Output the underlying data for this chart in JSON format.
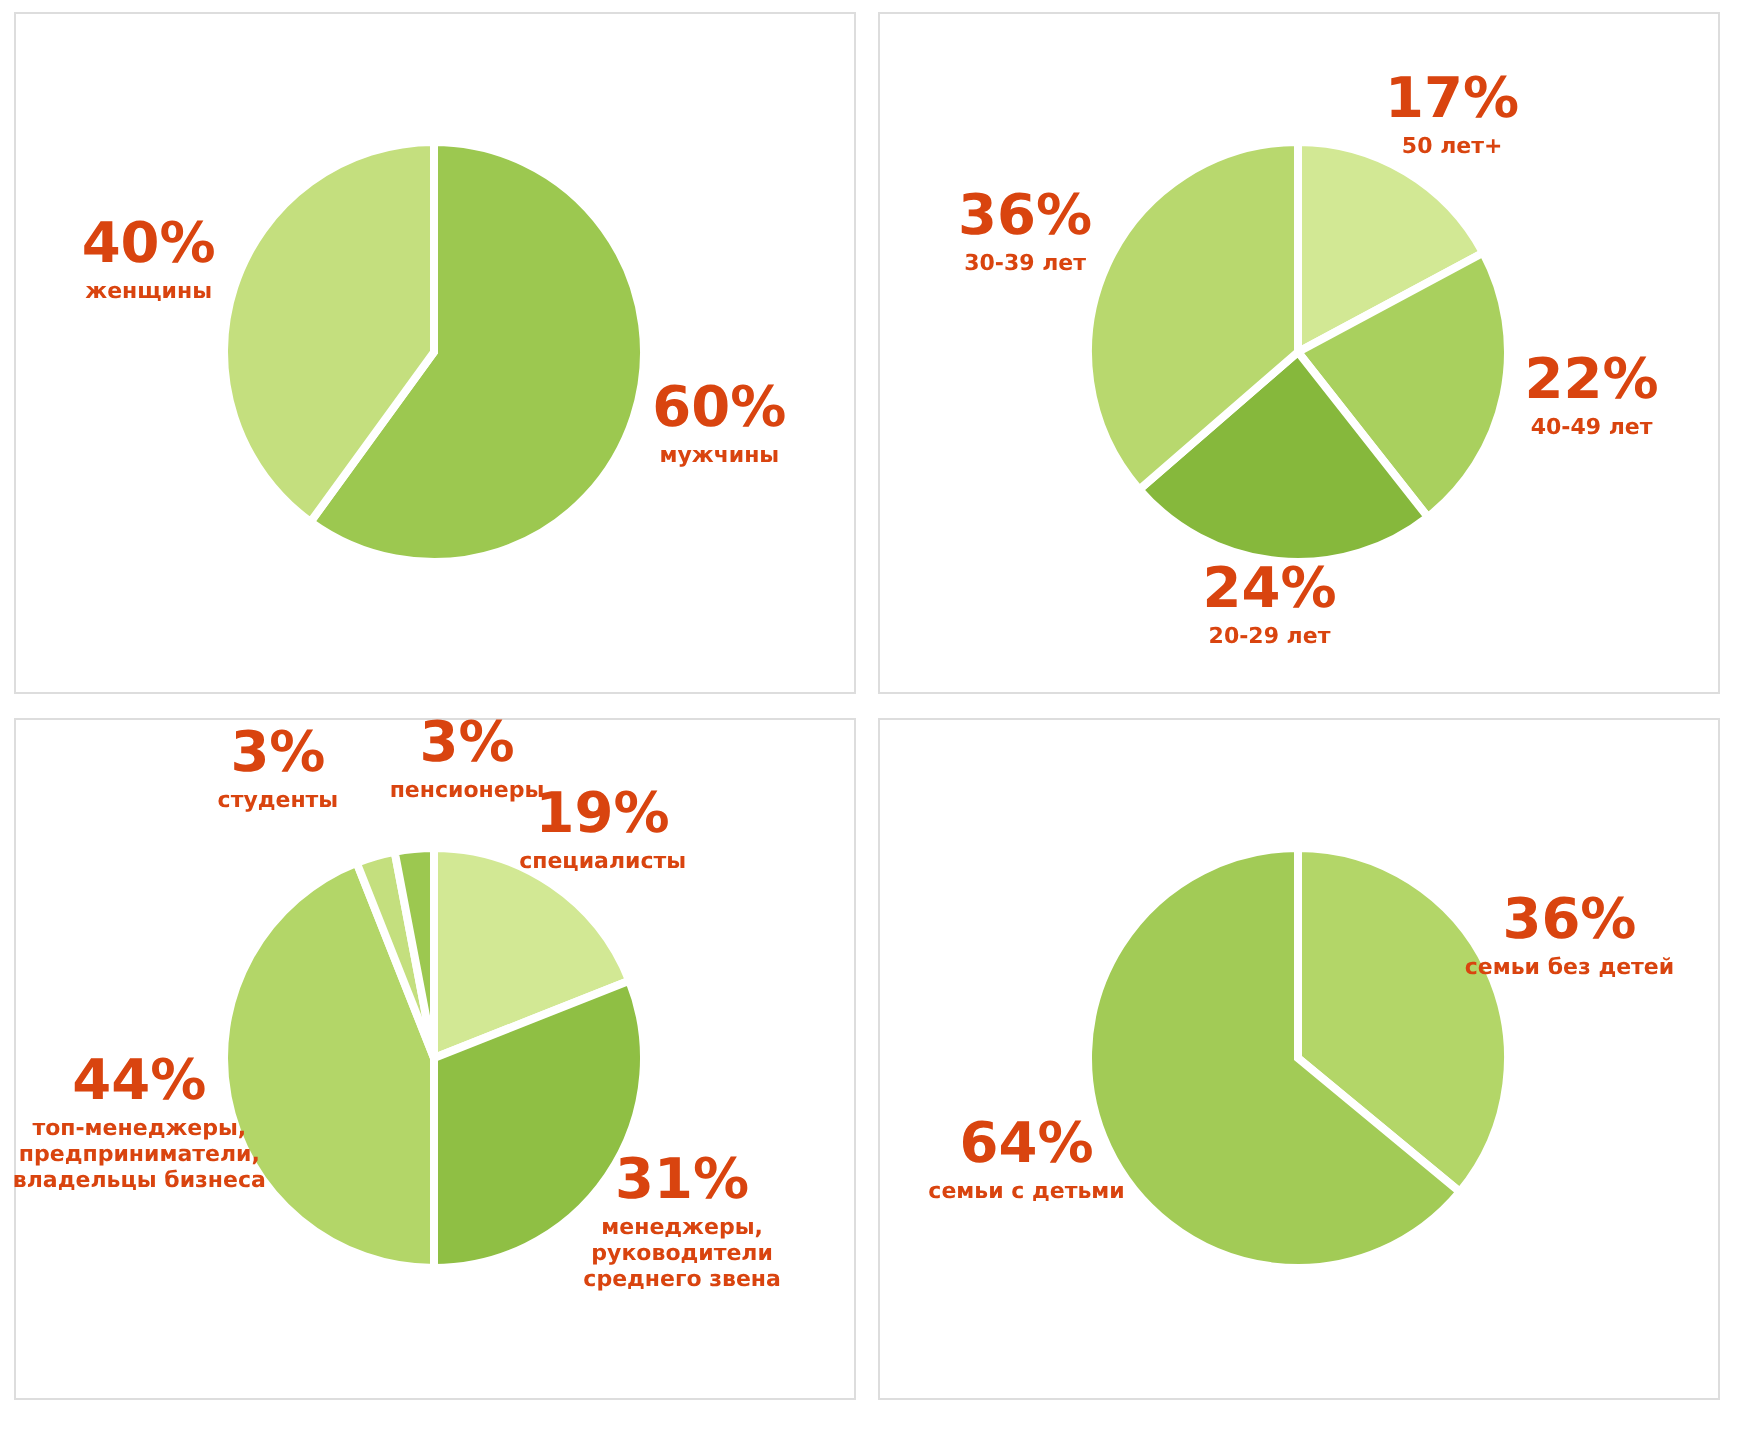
{
  "chart_data": [
    {
      "type": "pie",
      "categories": [
        "мужчины",
        "женщины"
      ],
      "values": [
        60,
        40
      ],
      "value_labels": [
        "60%",
        "40%"
      ],
      "colors": [
        "#9cc850",
        "#c4df7e"
      ],
      "legend": false
    },
    {
      "type": "pie",
      "categories": [
        "50 лет+",
        "40-49 лет",
        "20-29 лет",
        "30-39 лет"
      ],
      "values": [
        17,
        22,
        24,
        36
      ],
      "value_labels": [
        "17%",
        "22%",
        "24%",
        "36%"
      ],
      "colors": [
        "#d2e894",
        "#a9d05e",
        "#86b83c",
        "#b8d86e"
      ],
      "legend": false
    },
    {
      "type": "pie",
      "categories": [
        "специалисты",
        "менеджеры,\nруководители\nсреднего звена",
        "топ-менеджеры,\nпредприниматели,\nвладельцы бизнеса",
        "студенты",
        "пенсионеры"
      ],
      "values": [
        19,
        31,
        44,
        3,
        3
      ],
      "value_labels": [
        "19%",
        "31%",
        "44%",
        "3%",
        "3%"
      ],
      "colors": [
        "#d2e894",
        "#8fbf44",
        "#b3d668",
        "#c4df7e",
        "#9cc850"
      ],
      "legend": false
    },
    {
      "type": "pie",
      "categories": [
        "семьи без детей",
        "семьи с детьми"
      ],
      "values": [
        36,
        64
      ],
      "value_labels": [
        "36%",
        "64%"
      ],
      "colors": [
        "#b3d668",
        "#a2cb56"
      ],
      "legend": false
    }
  ]
}
